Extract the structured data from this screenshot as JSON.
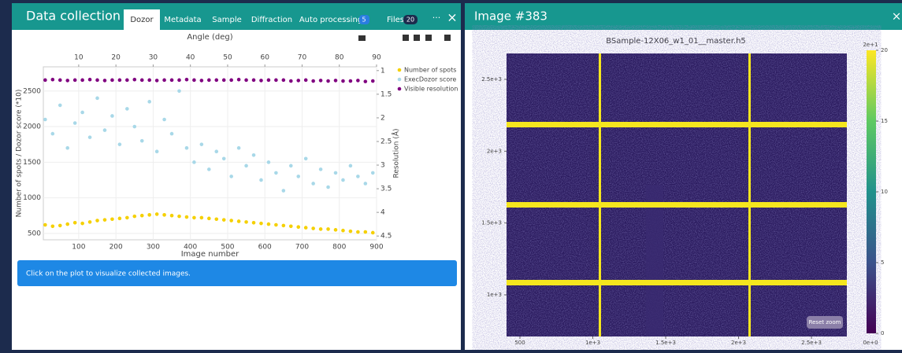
{
  "left_panel": {
    "title": "Data collection",
    "tabs": [
      {
        "label": "Dozor"
      },
      {
        "label": "Metadata"
      },
      {
        "label": "Sample"
      },
      {
        "label": "Diffraction"
      },
      {
        "label": "Auto processing",
        "badge": "5"
      },
      {
        "label": "Files",
        "badge": "20"
      }
    ],
    "menu": "···",
    "close": "×",
    "info": "Click on the plot to visualize collected images."
  },
  "chart_data": {
    "type": "scatter",
    "x_label": "Image number",
    "x2_label": "Angle (deg)",
    "y_label": "Number of spots / Dozor score (*10)",
    "y2_label": "Resolution (Å)",
    "x": [
      10,
      30,
      50,
      70,
      90,
      110,
      130,
      150,
      170,
      190,
      210,
      230,
      250,
      270,
      290,
      310,
      330,
      350,
      370,
      390,
      410,
      430,
      450,
      470,
      490,
      510,
      530,
      550,
      570,
      590,
      610,
      630,
      650,
      670,
      690,
      710,
      730,
      750,
      770,
      790,
      810,
      830,
      850,
      870,
      890
    ],
    "xlim": [
      5,
      900
    ],
    "xticks": [
      100,
      200,
      300,
      400,
      500,
      600,
      700,
      800,
      900
    ],
    "x2lim": [
      0.5,
      90
    ],
    "x2ticks": [
      10,
      20,
      30,
      40,
      50,
      60,
      70,
      80,
      90
    ],
    "ylim": [
      410,
      2840
    ],
    "yticks": [
      500,
      1000,
      1500,
      2000,
      2500
    ],
    "y2lim": [
      4.58,
      0.92
    ],
    "y2ticks": [
      1,
      1.5,
      2,
      2.5,
      3,
      3.5,
      4,
      4.5
    ],
    "grid": true,
    "series": [
      {
        "name": "Number of spots",
        "color": "#f5d000",
        "values": [
          620,
          600,
          610,
          630,
          650,
          640,
          660,
          680,
          690,
          700,
          710,
          720,
          740,
          750,
          760,
          770,
          760,
          750,
          740,
          730,
          720,
          720,
          710,
          700,
          690,
          680,
          670,
          660,
          650,
          640,
          630,
          620,
          610,
          600,
          590,
          580,
          570,
          560,
          560,
          550,
          540,
          530,
          520,
          520,
          510
        ]
      },
      {
        "name": "ExecDozor score",
        "color": "#a8d8e8",
        "values": [
          2100,
          1900,
          2300,
          1700,
          2050,
          2200,
          1850,
          2400,
          1950,
          2150,
          1750,
          2250,
          2000,
          1800,
          2350,
          1650,
          2100,
          1900,
          2500,
          1700,
          1500,
          1750,
          1400,
          1650,
          1550,
          1300,
          1700,
          1450,
          1600,
          1250,
          1500,
          1350,
          1100,
          1450,
          1300,
          1550,
          1200,
          1400,
          1150,
          1350,
          1250,
          1450,
          1300,
          1200,
          1350
        ]
      },
      {
        "name": "Visible resolution",
        "color": "#800080",
        "axis": "y2",
        "values": [
          1.2,
          1.19,
          1.2,
          1.21,
          1.2,
          1.2,
          1.19,
          1.2,
          1.21,
          1.2,
          1.2,
          1.2,
          1.19,
          1.2,
          1.2,
          1.21,
          1.2,
          1.2,
          1.2,
          1.19,
          1.2,
          1.21,
          1.2,
          1.2,
          1.2,
          1.2,
          1.19,
          1.2,
          1.2,
          1.21,
          1.2,
          1.2,
          1.2,
          1.22,
          1.21,
          1.2,
          1.22,
          1.21,
          1.22,
          1.21,
          1.22,
          1.22,
          1.21,
          1.23,
          1.22
        ]
      }
    ]
  },
  "image_view": {
    "title": "Image #383",
    "close": "×",
    "file": "BSample-12X06_w1_01__master.h5",
    "xlim": [
      408,
      2743
    ],
    "xticks": [
      {
        "value": 500,
        "label": "500"
      },
      {
        "value": 1000,
        "label": "1e+3"
      },
      {
        "value": 1500,
        "label": "1.5e+3"
      },
      {
        "value": 2000,
        "label": "2e+3"
      },
      {
        "value": 2500,
        "label": "2.5e+3"
      }
    ],
    "ylim": [
      710,
      2680
    ],
    "yticks": [
      {
        "value": 1000,
        "label": "1e+3"
      },
      {
        "value": 1500,
        "label": "1.5e+3"
      },
      {
        "value": 2000,
        "label": "2e+3"
      },
      {
        "value": 2500,
        "label": "2.5e+3"
      }
    ],
    "colorbar": {
      "lim": [
        0,
        20
      ],
      "ticks": [
        0,
        5,
        10,
        15,
        20
      ],
      "max_label": "2e+1",
      "min_label": "0e+0"
    },
    "button": "Reset zoom"
  }
}
